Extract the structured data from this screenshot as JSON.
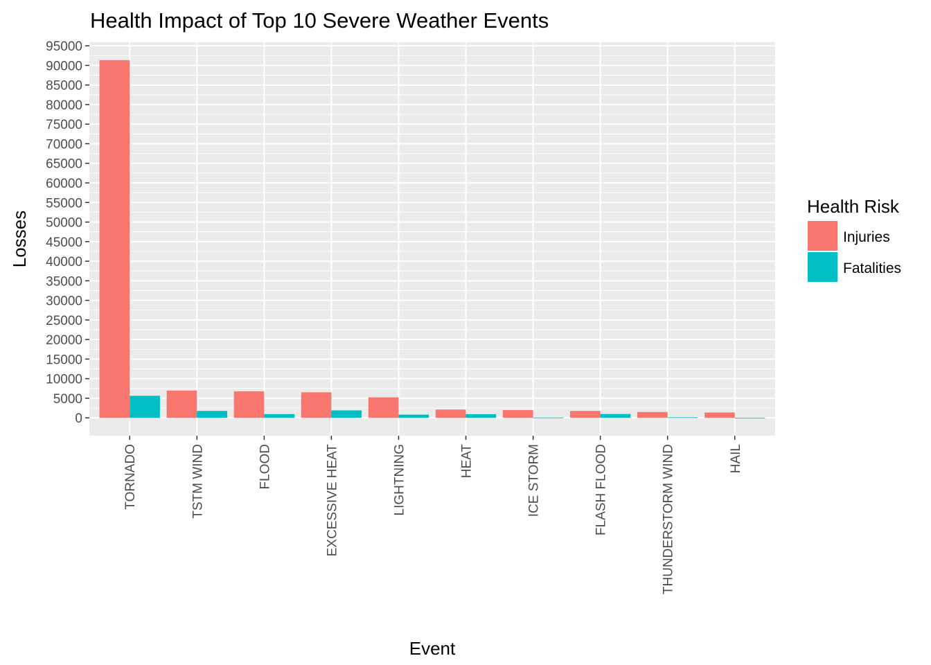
{
  "chart_data": {
    "type": "bar",
    "title": "Health Impact of Top 10 Severe Weather Events",
    "xlabel": "Event",
    "ylabel": "Losses",
    "categories": [
      "TORNADO",
      "TSTM WIND",
      "FLOOD",
      "EXCESSIVE HEAT",
      "LIGHTNING",
      "HEAT",
      "ICE STORM",
      "FLASH FLOOD",
      "THUNDERSTORM WIND",
      "HAIL"
    ],
    "series": [
      {
        "name": "Injuries",
        "color": "#F8766D",
        "values": [
          91346,
          6957,
          6789,
          6525,
          5230,
          2100,
          1975,
          1777,
          1488,
          1361
        ]
      },
      {
        "name": "Fatalities",
        "color": "#00BFC4",
        "values": [
          5633,
          1759,
          959,
          1903,
          816,
          937,
          89,
          978,
          133,
          15
        ]
      }
    ],
    "yticks": [
      0,
      5000,
      10000,
      15000,
      20000,
      25000,
      30000,
      35000,
      40000,
      45000,
      50000,
      55000,
      60000,
      65000,
      70000,
      75000,
      80000,
      85000,
      90000,
      95000
    ],
    "ylim": [
      -4567,
      95913
    ],
    "grid": true,
    "legend": {
      "title": "Health Risk",
      "position": "right"
    }
  }
}
